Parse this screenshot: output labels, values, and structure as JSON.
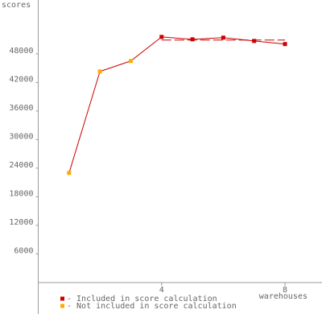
{
  "chart_data": {
    "type": "line",
    "y_label": "scores",
    "x_label": "warehouses",
    "x": [
      1,
      2,
      3,
      4,
      5,
      6,
      7,
      8
    ],
    "series": [
      {
        "values": [
          23000,
          44300,
          46500,
          51550,
          51050,
          51400,
          50700,
          50050
        ],
        "color": "#cc0000",
        "point_colors": [
          "#ffaa00",
          "#ffaa00",
          "#ffaa00",
          "#cc0000",
          "#cc0000",
          "#cc0000",
          "#cc0000",
          "#cc0000"
        ]
      }
    ],
    "reference_line": {
      "value": 50900,
      "x": [
        4,
        8
      ],
      "color": "#cc0000"
    },
    "legend": [
      {
        "label": "- Included in score calculation",
        "color": "#cc0000"
      },
      {
        "label": "- Not included in score calculation",
        "color": "#ffaa00"
      }
    ],
    "xlim": [
      0,
      9.2
    ],
    "xticks": [
      4,
      8
    ],
    "ylim": [
      -6600,
      59300
    ],
    "yticks": [
      6000,
      12000,
      18000,
      24000,
      30000,
      36000,
      42000,
      48000
    ]
  }
}
